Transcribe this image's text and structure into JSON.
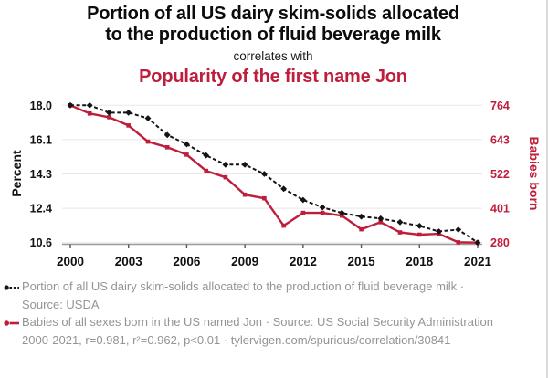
{
  "colors": {
    "red": "#be1e3c",
    "series_black": "#141414",
    "legend_text": "#949494",
    "gridline": "#e8e8e8",
    "axis_line": "#9b9b9b"
  },
  "titles": {
    "main_lines": [
      "Portion of all US dairy skim-solids allocated",
      "to the production of fluid beverage milk"
    ],
    "connector": "correlates with",
    "secondary": "Popularity of the first name Jon"
  },
  "legend": {
    "dairy": "Portion of all US dairy skim-solids allocated to the production of fluid beverage milk · Source: USDA",
    "jon": "Babies of all sexes born in the US named Jon · Source: US Social Security Administration",
    "footer": "2000-2021, r=0.981, r²=0.962, p<0.01 · tylervigen.com/spurious/correlation/30841"
  },
  "chart_data": {
    "type": "line",
    "title": "Portion of all US dairy skim-solids allocated to the production of fluid beverage milk correlates with Popularity of the first name Jon",
    "x": [
      2000,
      2001,
      2002,
      2003,
      2004,
      2005,
      2006,
      2007,
      2008,
      2009,
      2010,
      2011,
      2012,
      2013,
      2014,
      2015,
      2016,
      2017,
      2018,
      2019,
      2020,
      2021
    ],
    "x_ticks": [
      {
        "value": 2000,
        "label": "2000"
      },
      {
        "value": 2003,
        "label": "2003"
      },
      {
        "value": 2006,
        "label": "2006"
      },
      {
        "value": 2009,
        "label": "2009"
      },
      {
        "value": 2012,
        "label": "2012"
      },
      {
        "value": 2015,
        "label": "2015"
      },
      {
        "value": 2018,
        "label": "2018"
      },
      {
        "value": 2021,
        "label": "2021"
      }
    ],
    "left_axis": {
      "label": "Percent",
      "range": [
        10.6,
        18.0
      ],
      "ticks": [
        {
          "value": 18.0,
          "label": "18.0"
        },
        {
          "value": 16.15,
          "label": "16.1"
        },
        {
          "value": 14.3,
          "label": "14.3"
        },
        {
          "value": 12.45,
          "label": "12.4"
        },
        {
          "value": 10.6,
          "label": "10.6"
        }
      ]
    },
    "right_axis": {
      "label": "Babies born",
      "range": [
        280,
        764
      ],
      "ticks": [
        {
          "value": 764,
          "label": "764"
        },
        {
          "value": 643,
          "label": "643"
        },
        {
          "value": 522,
          "label": "522"
        },
        {
          "value": 401,
          "label": "401"
        },
        {
          "value": 280,
          "label": "280"
        }
      ]
    },
    "grid": true,
    "legend_position": "bottom",
    "series": [
      {
        "id": "jon",
        "name": "Babies of all sexes born in the US named Jon",
        "source": "US Social Security Administration",
        "axis": "right",
        "color": "#be1e3c",
        "line_style": "solid",
        "marker": "square",
        "values": [
          764,
          735,
          722,
          693,
          636,
          616,
          590,
          533,
          510,
          449,
          436,
          340,
          385,
          385,
          375,
          327,
          352,
          316,
          308,
          311,
          281,
          280
        ]
      },
      {
        "id": "dairy",
        "name": "Portion of all US dairy skim-solids allocated to the production of fluid beverage milk",
        "source": "USDA",
        "axis": "left",
        "color": "#141414",
        "line_style": "dashed",
        "marker": "diamond",
        "values": [
          18.0,
          18.0,
          17.6,
          17.6,
          17.3,
          16.4,
          15.9,
          15.3,
          14.8,
          14.8,
          14.3,
          13.5,
          12.9,
          12.5,
          12.2,
          12.0,
          11.9,
          11.7,
          11.5,
          11.2,
          11.3,
          10.6
        ]
      }
    ]
  }
}
